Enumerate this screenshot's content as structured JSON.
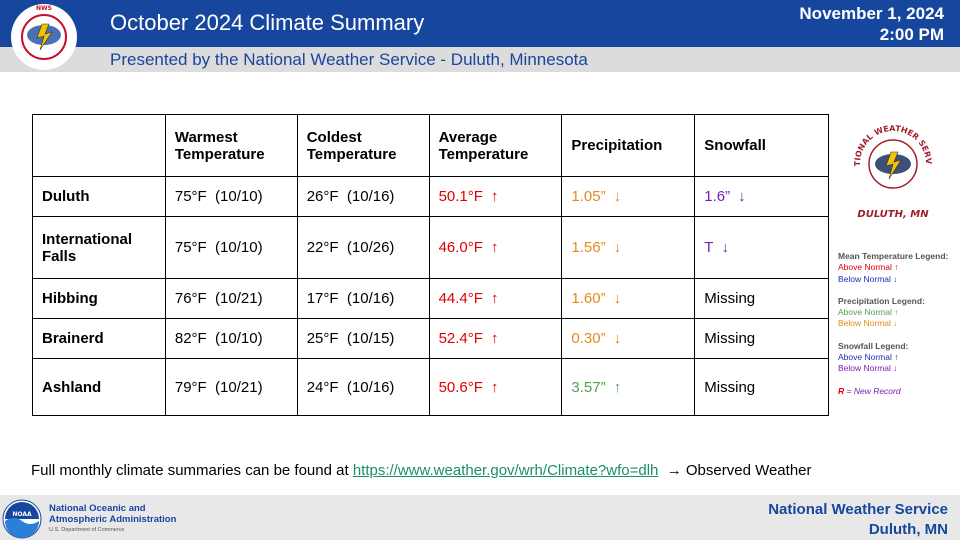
{
  "header": {
    "title": "October 2024 Climate Summary",
    "subtitle": "Presented by the National Weather Service - Duluth, Minnesota",
    "date": "November 1, 2024",
    "time": "2:00 PM",
    "logo_text": "NATIONAL WEATHER SERVICE"
  },
  "table": {
    "headers": [
      "",
      "Warmest Temperature",
      "Coldest Temperature",
      "Average Temperature",
      "Precipitation",
      "Snowfall"
    ],
    "rows": [
      {
        "name": "Duluth",
        "warmest": "75°F  (10/10)",
        "coldest": "26°F  (10/16)",
        "avg": "50.1°F",
        "avg_arrow": "↑",
        "precip": "1.05”",
        "precip_arrow": "↓",
        "snow": "1.6”",
        "snow_arrow": "↓"
      },
      {
        "name": "International Falls",
        "warmest": "75°F  (10/10)",
        "coldest": "22°F  (10/26)",
        "avg": "46.0°F",
        "avg_arrow": "↑",
        "precip": "1.56”",
        "precip_arrow": "↓",
        "snow": "T",
        "snow_arrow": "↓"
      },
      {
        "name": "Hibbing",
        "warmest": "76°F  (10/21)",
        "coldest": "17°F  (10/16)",
        "avg": "44.4°F",
        "avg_arrow": "↑",
        "precip": "1.60”",
        "precip_arrow": "↓",
        "snow": "Missing",
        "snow_arrow": ""
      },
      {
        "name": "Brainerd",
        "warmest": "82°F  (10/10)",
        "coldest": "25°F  (10/15)",
        "avg": "52.4°F",
        "avg_arrow": "↑",
        "precip": "0.30”",
        "precip_arrow": "↓",
        "snow": "Missing",
        "snow_arrow": ""
      },
      {
        "name": "Ashland",
        "warmest": "79°F  (10/21)",
        "coldest": "24°F  (10/16)",
        "avg": "50.6°F",
        "avg_arrow": "↑",
        "precip": "3.57”",
        "precip_arrow": "↑",
        "snow": "Missing",
        "snow_arrow": ""
      }
    ]
  },
  "right_logo": {
    "text_top": "NATIONAL WEATHER SERVICE",
    "text_bottom": "DULUTH, MN"
  },
  "legend": {
    "mean_title": "Mean Temperature Legend:",
    "mean_above": "Above Normal ↑",
    "mean_below": "Below Normal ↓",
    "precip_title": "Precipitation Legend:",
    "precip_above": "Above Normal ↑",
    "precip_below": "Below Normal ↓",
    "snow_title": "Snowfall Legend:",
    "snow_above": "Above Normal ↑",
    "snow_below": "Below Normal ↓",
    "record_letter": "R",
    "record_text": " = New Record"
  },
  "footnote": {
    "prefix": "Full monthly climate summaries can be found at ",
    "link": "https://www.weather.gov/wrh/Climate?wfo=dlh",
    "suffix": "  → Observed Weather"
  },
  "footer": {
    "noaa_line1": "National Oceanic and",
    "noaa_line2": "Atmospheric Administration",
    "noaa_dept": "U.S. Department of Commerce",
    "noaa_logo_text": "NOAA",
    "nws_line1": "National Weather Service",
    "nws_line2": "Duluth, MN"
  },
  "colors": {
    "header_blue": "#17469e",
    "above_normal_temp": "#e00000",
    "below_normal_precip": "#e58a1f",
    "above_normal_precip": "#4da34d",
    "below_normal_snow": "#7a1fb3"
  }
}
